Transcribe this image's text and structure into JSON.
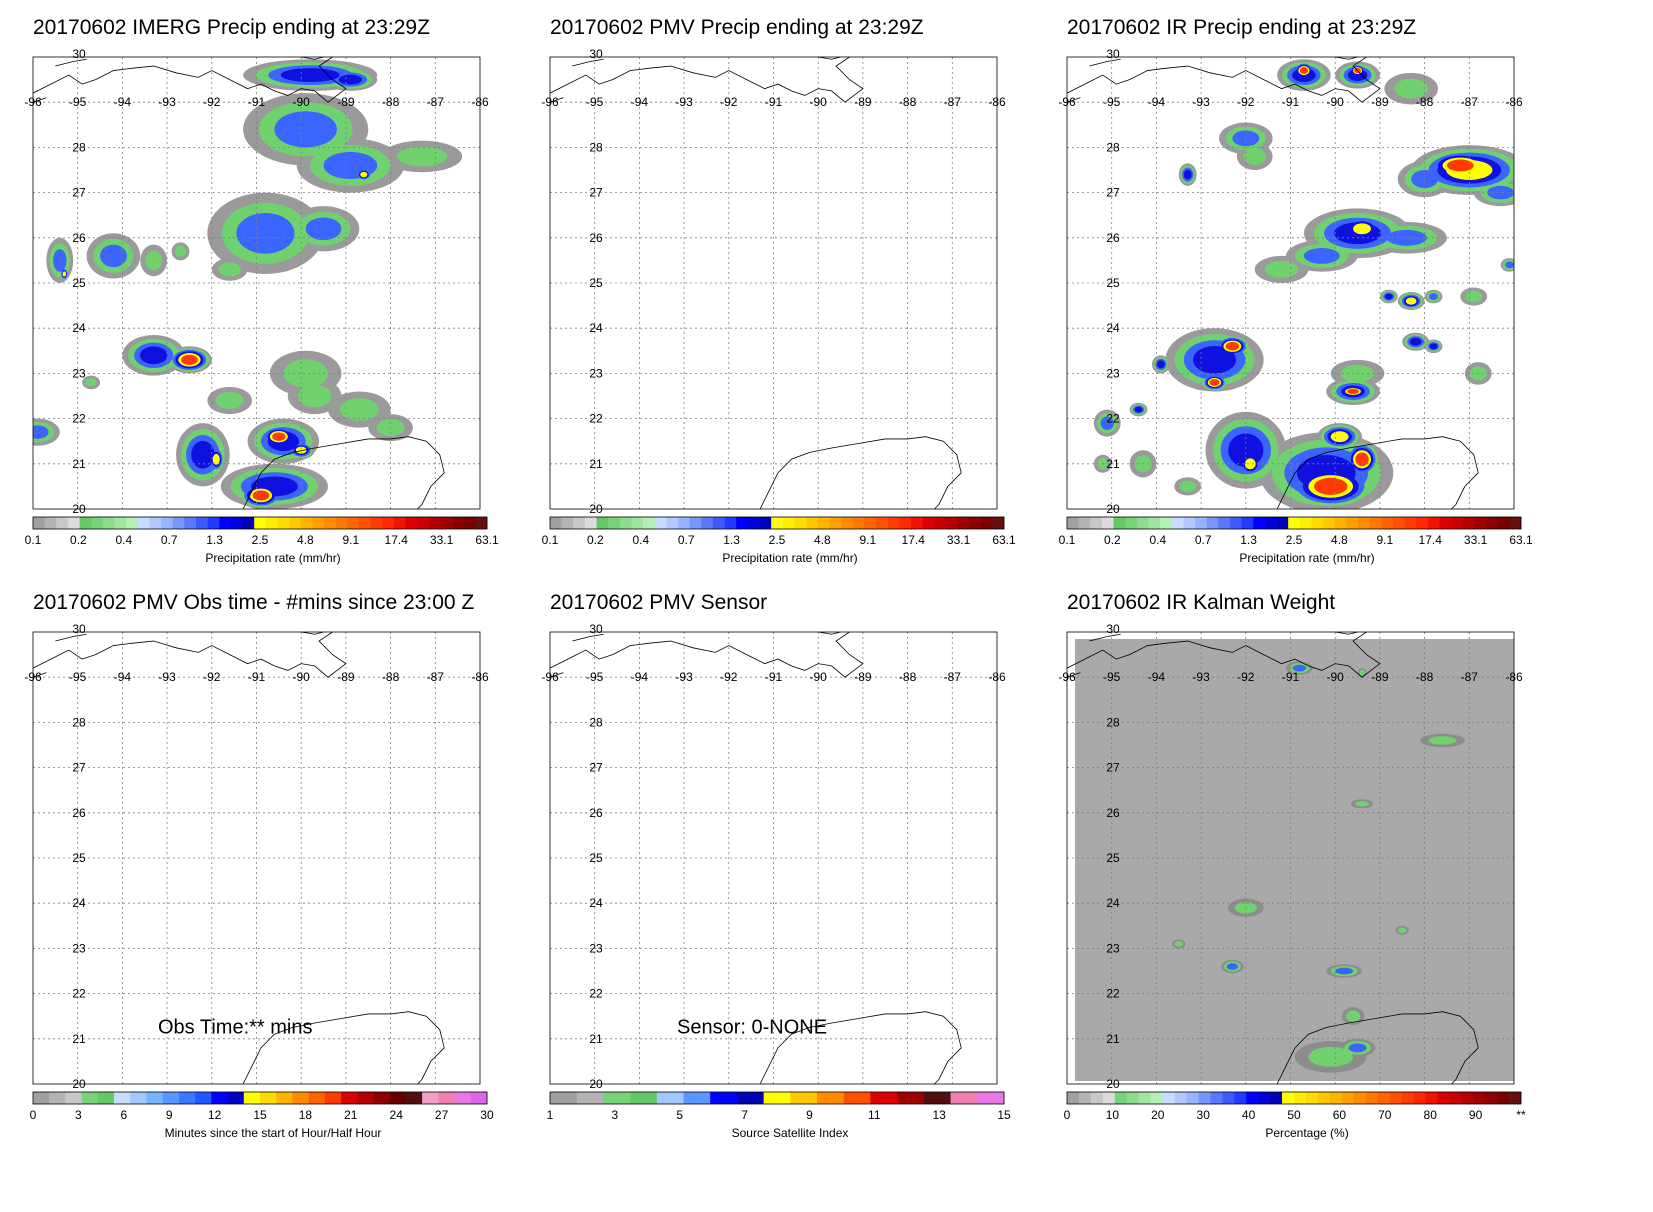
{
  "panels": [
    {
      "id": "imerg",
      "title": "20170602 IMERG Precip ending at 23:29Z",
      "colorbar": "precip",
      "field": "imerg"
    },
    {
      "id": "pmv",
      "title": "20170602 PMV Precip ending at 23:29Z",
      "colorbar": "precip",
      "field": "none"
    },
    {
      "id": "ir",
      "title": "20170602 IR Precip ending at 23:29Z",
      "colorbar": "precip",
      "field": "ir"
    },
    {
      "id": "obs_time",
      "title": "20170602 PMV Obs time - #mins since 23:00 Z",
      "colorbar": "minutes",
      "field": "none",
      "overlay_text": "Obs Time:** mins"
    },
    {
      "id": "sensor",
      "title": "20170602 PMV Sensor",
      "colorbar": "sensor",
      "field": "none",
      "overlay_text": "Sensor:  0-NONE"
    },
    {
      "id": "kalman",
      "title": "20170602 IR Kalman Weight",
      "colorbar": "percent",
      "field": "kalman"
    }
  ],
  "map": {
    "lat_labels": [
      "30",
      "28",
      "27",
      "26",
      "25",
      "24",
      "23",
      "22",
      "21",
      "20"
    ],
    "lon_labels": [
      "-96",
      "-95",
      "-94",
      "-93",
      "-92",
      "-91",
      "-90",
      "-89",
      "-88",
      "-87",
      "-86"
    ],
    "lat_range": [
      20,
      30
    ],
    "lon_range": [
      -96,
      -86
    ]
  },
  "colorbars": {
    "precip": {
      "label": "Precipitation rate (mm/hr)",
      "ticks": [
        "0.1",
        "0.2",
        "0.4",
        "0.7",
        "1.3",
        "2.5",
        "4.8",
        "9.1",
        "17.4",
        "33.1",
        "63.1"
      ],
      "colors": [
        "#a0a0a0",
        "#b4b4b4",
        "#c8c8c8",
        "#dcdcdc",
        "#64c864",
        "#78d278",
        "#8cdc8c",
        "#a0e6a0",
        "#b4f0b4",
        "#c8dcff",
        "#b4c8ff",
        "#96b4ff",
        "#7896ff",
        "#5a78ff",
        "#3c5aff",
        "#1e3cff",
        "#0000ff",
        "#0000dc",
        "#0000b4",
        "#ffff00",
        "#ffee00",
        "#ffdc00",
        "#ffc800",
        "#ffb400",
        "#ffa000",
        "#ff8c00",
        "#ff7800",
        "#ff6400",
        "#ff5000",
        "#ff3c00",
        "#ff2800",
        "#f01400",
        "#dc0000",
        "#c80000",
        "#b40000",
        "#a00000",
        "#8c0000",
        "#780000",
        "#641010"
      ]
    },
    "minutes": {
      "label": "Minutes since the start of Hour/Half Hour",
      "ticks": [
        "0",
        "3",
        "6",
        "9",
        "12",
        "15",
        "18",
        "21",
        "24",
        "27",
        "30"
      ],
      "colors": [
        "#a0a0a0",
        "#b4b4b4",
        "#c8c8c8",
        "#78d278",
        "#64c864",
        "#c8dcff",
        "#a0c8ff",
        "#78b4ff",
        "#5a96ff",
        "#3c78ff",
        "#1e5aff",
        "#0000ff",
        "#0000c8",
        "#ffff00",
        "#ffdc00",
        "#ffb400",
        "#ff8c00",
        "#ff6400",
        "#ff3c00",
        "#dc0000",
        "#b40000",
        "#8c0000",
        "#640000",
        "#501010",
        "#f0a0c8",
        "#f080b4",
        "#e678e6",
        "#dc64e6"
      ]
    },
    "sensor": {
      "label": "Source Satellite Index",
      "ticks": [
        "1",
        "3",
        "5",
        "7",
        "9",
        "11",
        "13",
        "15"
      ],
      "colors": [
        "#a0a0a0",
        "#b4b4b4",
        "#78d278",
        "#64c864",
        "#a0c8ff",
        "#5a96ff",
        "#0000ff",
        "#0000b4",
        "#ffff00",
        "#ffc800",
        "#ff8c00",
        "#ff5000",
        "#dc0000",
        "#a00000",
        "#501010",
        "#f080b4",
        "#e678e6"
      ]
    },
    "percent": {
      "label": "Percentage (%)",
      "ticks": [
        "0",
        "10",
        "20",
        "30",
        "40",
        "50",
        "60",
        "70",
        "80",
        "90",
        "**"
      ],
      "colors": [
        "#a0a0a0",
        "#b4b4b4",
        "#c8c8c8",
        "#dcdcdc",
        "#78d278",
        "#8cdc8c",
        "#a0e6a0",
        "#b4f0b4",
        "#c8dcff",
        "#b4c8ff",
        "#96b4ff",
        "#7896ff",
        "#5a78ff",
        "#3c5aff",
        "#1e3cff",
        "#0000ff",
        "#0000dc",
        "#0000b4",
        "#ffff00",
        "#ffee00",
        "#ffdc00",
        "#ffc800",
        "#ffb400",
        "#ffa000",
        "#ff8c00",
        "#ff7800",
        "#ff6400",
        "#ff5000",
        "#ff3c00",
        "#ff2800",
        "#f01400",
        "#dc0000",
        "#c80000",
        "#b40000",
        "#a00000",
        "#8c0000",
        "#780000",
        "#641010"
      ]
    }
  },
  "colors": {
    "kalman_background": "#a9a9a9",
    "coast": "#000000",
    "grid": "#808080"
  }
}
